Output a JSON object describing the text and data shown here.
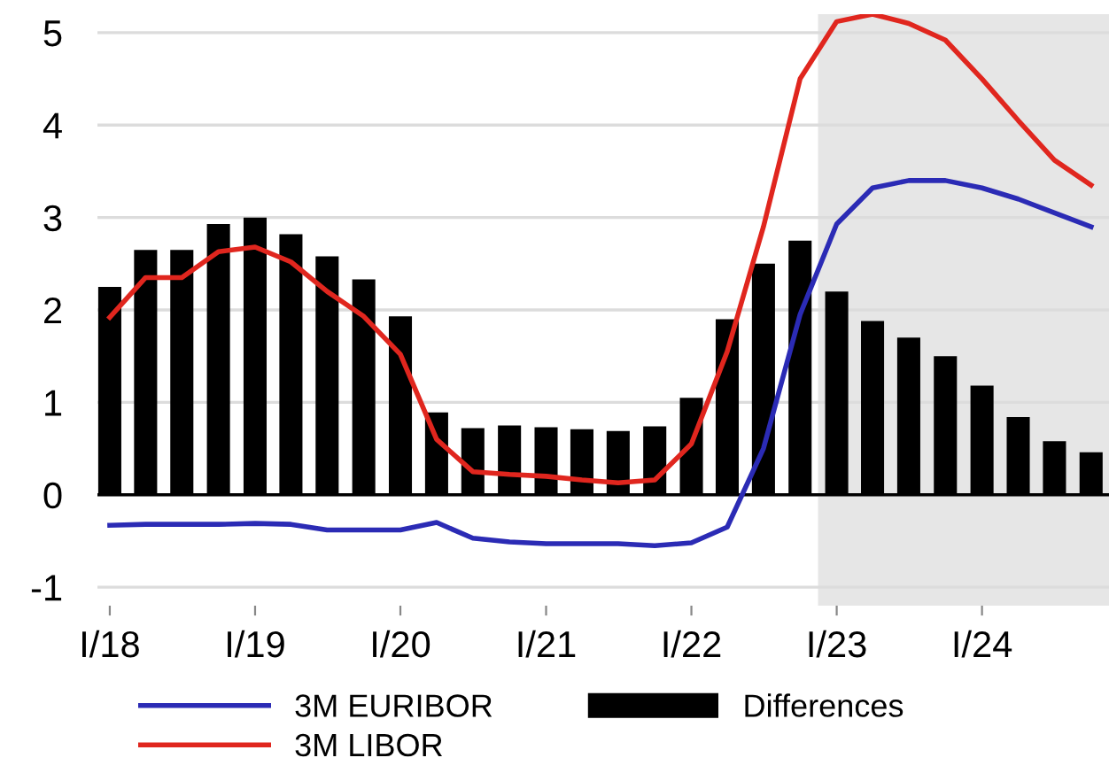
{
  "chart_data": {
    "type": "bar",
    "x": [
      "2018-01",
      "2018-04",
      "2018-07",
      "2018-10",
      "2019-01",
      "2019-04",
      "2019-07",
      "2019-10",
      "2020-01",
      "2020-04",
      "2020-07",
      "2020-10",
      "2021-01",
      "2021-04",
      "2021-07",
      "2021-10",
      "2022-01",
      "2022-04",
      "2022-07",
      "2022-10",
      "2023-01",
      "2023-04",
      "2023-07",
      "2023-10",
      "2024-01",
      "2024-04",
      "2024-07",
      "2024-10"
    ],
    "series": [
      {
        "name": "3M EURIBOR",
        "type": "line",
        "color": "#2b2bb5",
        "values": [
          -0.33,
          -0.32,
          -0.32,
          -0.32,
          -0.31,
          -0.32,
          -0.38,
          -0.38,
          -0.38,
          -0.3,
          -0.47,
          -0.51,
          -0.53,
          -0.53,
          -0.53,
          -0.55,
          -0.52,
          -0.35,
          0.5,
          1.95,
          2.93,
          3.32,
          3.4,
          3.4,
          3.32,
          3.2,
          3.05,
          2.9
        ]
      },
      {
        "name": "3M LIBOR",
        "type": "line",
        "color": "#e0261e",
        "values": [
          1.92,
          2.35,
          2.35,
          2.63,
          2.68,
          2.52,
          2.2,
          1.93,
          1.52,
          0.6,
          0.25,
          0.22,
          0.2,
          0.16,
          0.13,
          0.16,
          0.55,
          1.55,
          2.9,
          4.5,
          5.12,
          5.2,
          5.1,
          4.92,
          4.5,
          4.05,
          3.62,
          3.35
        ]
      },
      {
        "name": "Differences",
        "color": "#000000",
        "values": [
          2.25,
          2.65,
          2.65,
          2.93,
          3.0,
          2.82,
          2.58,
          2.33,
          1.93,
          0.89,
          0.72,
          0.75,
          0.73,
          0.71,
          0.69,
          0.74,
          1.05,
          1.9,
          2.5,
          2.75,
          2.2,
          1.88,
          1.7,
          1.5,
          1.18,
          0.84,
          0.58,
          0.46
        ]
      }
    ],
    "xlim": [
      "2017-12-01",
      "2024-11-15"
    ],
    "xticks": [
      {
        "value": "2018-01",
        "label": "I/18"
      },
      {
        "value": "2019-01",
        "label": "I/19"
      },
      {
        "value": "2020-01",
        "label": "I/20"
      },
      {
        "value": "2021-01",
        "label": "I/21"
      },
      {
        "value": "2022-01",
        "label": "I/22"
      },
      {
        "value": "2023-01",
        "label": "I/23"
      },
      {
        "value": "2024-01",
        "label": "I/24"
      }
    ],
    "ylim": [
      -1.2,
      5.2
    ],
    "yticks": [
      -1,
      0,
      1,
      2,
      3,
      4,
      5
    ],
    "bands": [
      {
        "axis": "x",
        "from": "2022-11-15",
        "to": "2024-11-15",
        "color": "#e6e6e6"
      }
    ],
    "ref_lines": [
      {
        "axis": "y",
        "value": 0,
        "color": "#000000"
      }
    ],
    "grid": "y",
    "legend": "bottom"
  }
}
